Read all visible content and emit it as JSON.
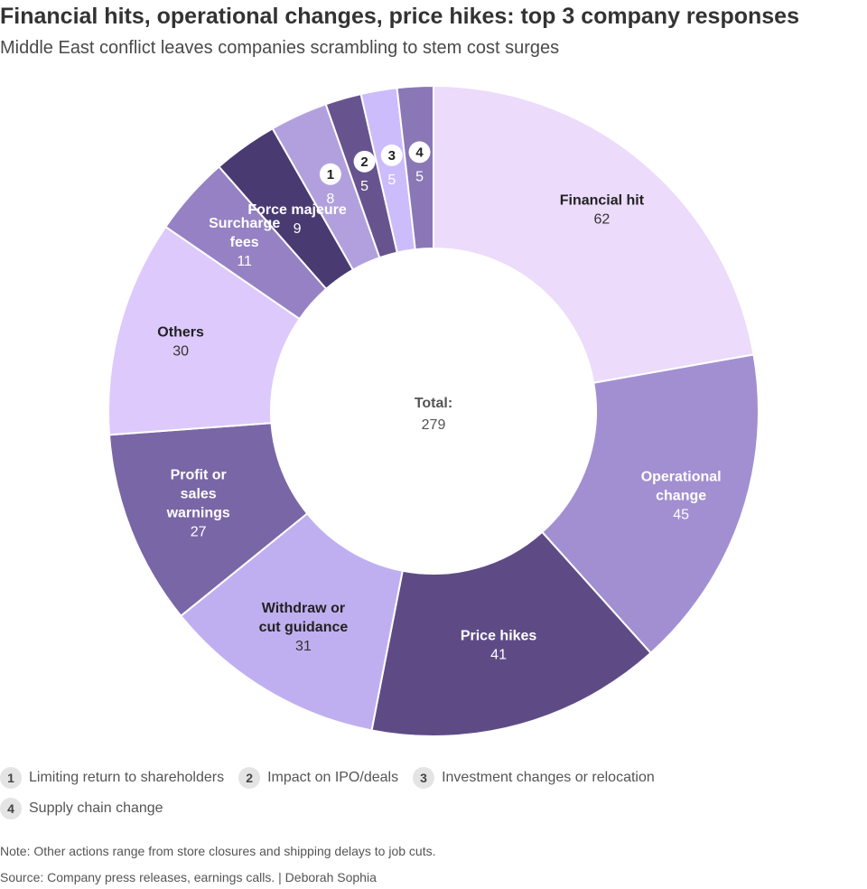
{
  "title": "Financial hits, operational changes, price hikes: top 3 company responses",
  "subtitle": "Middle East conflict leaves companies scrambling to stem cost surges",
  "chart_data": {
    "type": "pie",
    "donut": true,
    "center_label": "Total:",
    "center_value": "279",
    "slices": [
      {
        "label": "Financial hit",
        "value": 62,
        "color": "#ecdbfb"
      },
      {
        "label": "Operational change",
        "value": 45,
        "color": "#a28fd1"
      },
      {
        "label": "Price hikes",
        "value": 41,
        "color": "#5e4b86"
      },
      {
        "label": "Withdraw or cut guidance",
        "value": 31,
        "color": "#c0aff0"
      },
      {
        "label": "Profit or sales warnings",
        "value": 27,
        "color": "#7966a6"
      },
      {
        "label": "Others",
        "value": 30,
        "color": "#ddc9fc"
      },
      {
        "label": "Surcharge fees",
        "value": 11,
        "color": "#9581c3"
      },
      {
        "label": "Force majeure",
        "value": 9,
        "color": "#4a3a72"
      },
      {
        "label": "1",
        "value": 8,
        "color": "#b2a0de"
      },
      {
        "label": "2",
        "value": 5,
        "color": "#67548e"
      },
      {
        "label": "3",
        "value": 5,
        "color": "#cdbcfb"
      },
      {
        "label": "4",
        "value": 5,
        "color": "#8a77b6"
      }
    ]
  },
  "legend": [
    {
      "number": "1",
      "label": "Limiting return to shareholders"
    },
    {
      "number": "2",
      "label": "Impact on IPO/deals"
    },
    {
      "number": "3",
      "label": "Investment changes or relocation"
    },
    {
      "number": "4",
      "label": "Supply chain change"
    }
  ],
  "note": "Note: Other actions range from store closures and shipping delays to job cuts.",
  "source": "Source: Company press releases, earnings calls.  | Deborah Sophia"
}
